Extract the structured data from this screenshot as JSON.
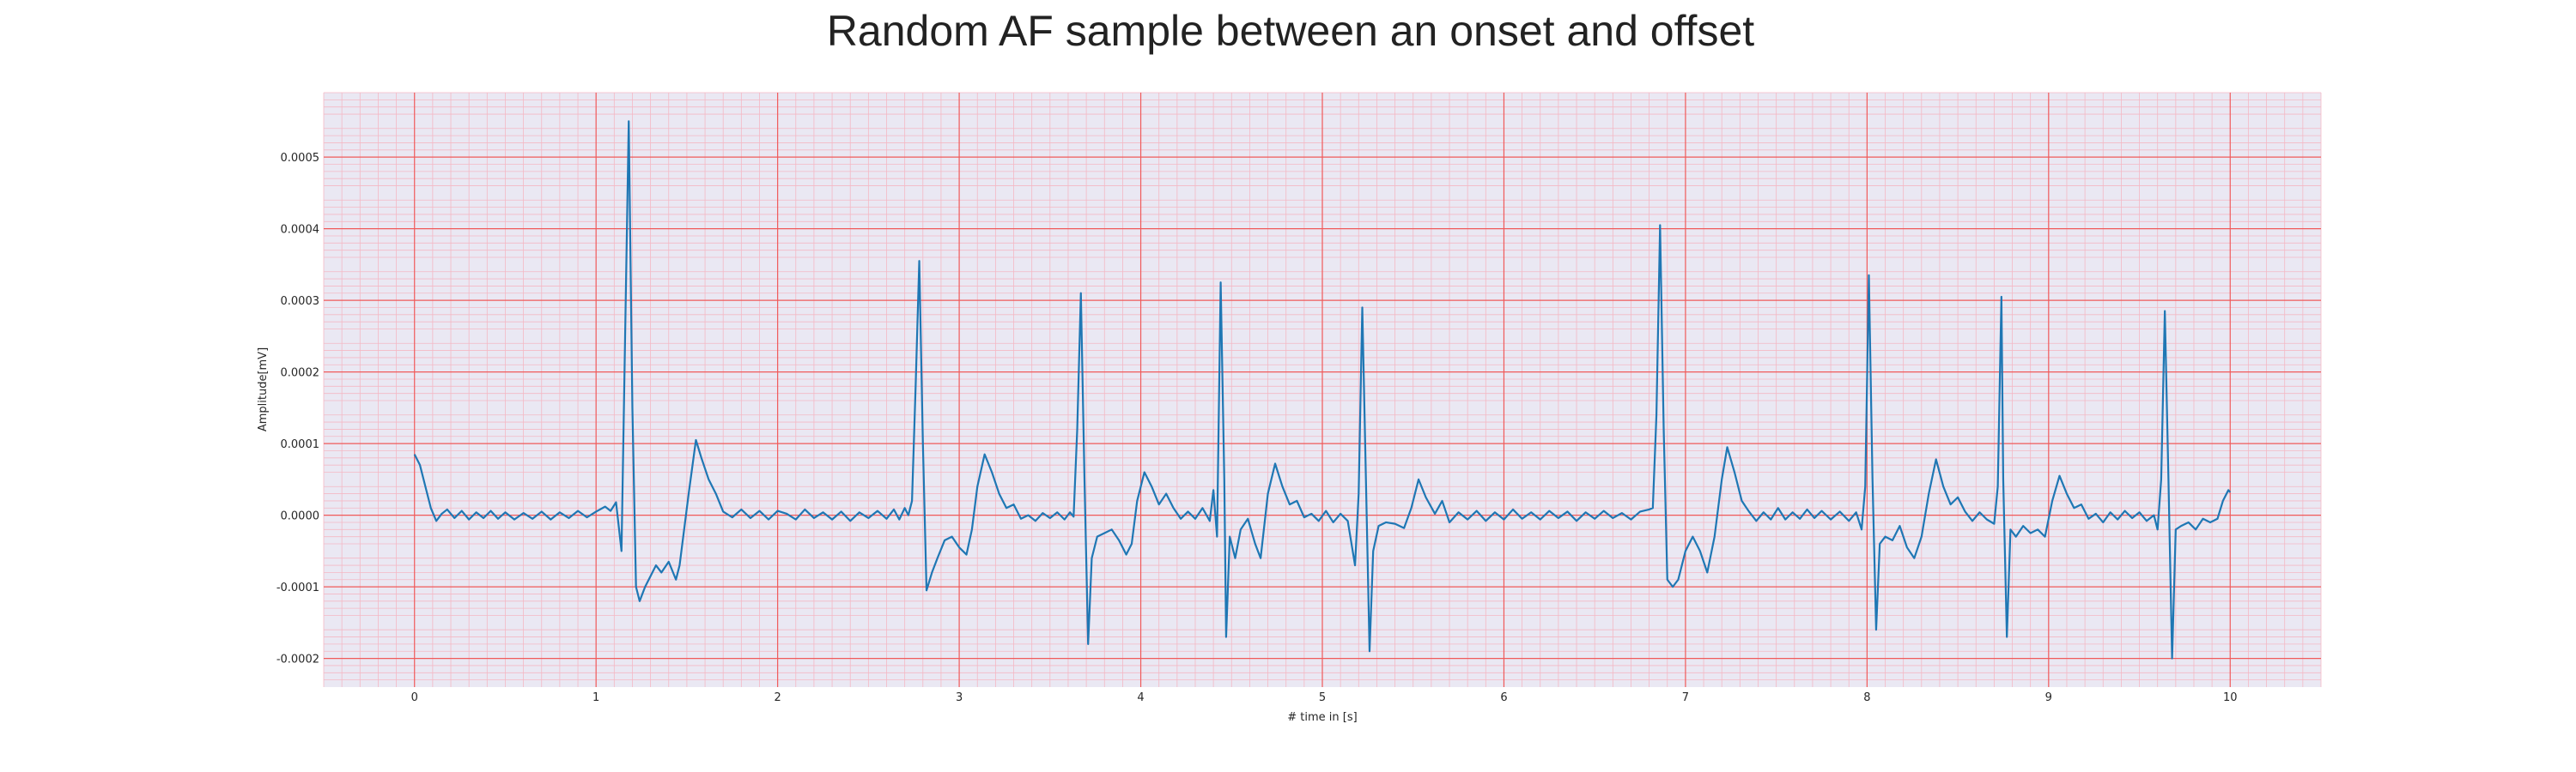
{
  "chart_data": {
    "type": "line",
    "title": "Random AF sample between an onset and offset",
    "xlabel": "# time in [s]",
    "ylabel": "Amplitude[mV]",
    "xlim": [
      -0.5,
      10.5
    ],
    "ylim": [
      -0.00024,
      0.00059
    ],
    "x_ticks": [
      0,
      1,
      2,
      3,
      4,
      5,
      6,
      7,
      8,
      9,
      10
    ],
    "y_ticks": [
      -0.0002,
      -0.0001,
      0.0,
      0.0001,
      0.0002,
      0.0003,
      0.0004,
      0.0005
    ],
    "y_tick_labels": [
      "-0.0002",
      "-0.0001",
      "0.0000",
      "0.0001",
      "0.0002",
      "0.0003",
      "0.0004",
      "0.0005"
    ],
    "grid": true,
    "colors": {
      "plot_background": "#eae8f3",
      "major_grid": "#f05a5a",
      "minor_grid": "#f4b8c4",
      "series": "#1f77b4"
    },
    "series": [
      {
        "name": "",
        "points": [
          [
            0.0,
            8.5e-05
          ],
          [
            0.03,
            7e-05
          ],
          [
            0.06,
            4e-05
          ],
          [
            0.09,
            1e-05
          ],
          [
            0.12,
            -8e-06
          ],
          [
            0.15,
            2e-06
          ],
          [
            0.18,
            8e-06
          ],
          [
            0.22,
            -4e-06
          ],
          [
            0.26,
            6e-06
          ],
          [
            0.3,
            -6e-06
          ],
          [
            0.34,
            4e-06
          ],
          [
            0.38,
            -4e-06
          ],
          [
            0.42,
            6e-06
          ],
          [
            0.46,
            -5e-06
          ],
          [
            0.5,
            4e-06
          ],
          [
            0.55,
            -6e-06
          ],
          [
            0.6,
            3e-06
          ],
          [
            0.65,
            -5e-06
          ],
          [
            0.7,
            5e-06
          ],
          [
            0.75,
            -6e-06
          ],
          [
            0.8,
            4e-06
          ],
          [
            0.85,
            -4e-06
          ],
          [
            0.9,
            6e-06
          ],
          [
            0.95,
            -3e-06
          ],
          [
            1.0,
            5e-06
          ],
          [
            1.05,
            1.2e-05
          ],
          [
            1.08,
            6e-06
          ],
          [
            1.11,
            1.8e-05
          ],
          [
            1.14,
            -5e-05
          ],
          [
            1.16,
            0.00025
          ],
          [
            1.18,
            0.00055
          ],
          [
            1.2,
            0.00015
          ],
          [
            1.22,
            -0.0001
          ],
          [
            1.24,
            -0.00012
          ],
          [
            1.27,
            -0.0001
          ],
          [
            1.3,
            -8.5e-05
          ],
          [
            1.33,
            -7e-05
          ],
          [
            1.36,
            -8e-05
          ],
          [
            1.4,
            -6.5e-05
          ],
          [
            1.44,
            -9e-05
          ],
          [
            1.46,
            -7e-05
          ],
          [
            1.48,
            -3e-05
          ],
          [
            1.51,
            3e-05
          ],
          [
            1.55,
            0.000105
          ],
          [
            1.58,
            8e-05
          ],
          [
            1.62,
            5e-05
          ],
          [
            1.66,
            3e-05
          ],
          [
            1.7,
            5e-06
          ],
          [
            1.75,
            -3e-06
          ],
          [
            1.8,
            8e-06
          ],
          [
            1.85,
            -4e-06
          ],
          [
            1.9,
            6e-06
          ],
          [
            1.95,
            -6e-06
          ],
          [
            2.0,
            6e-06
          ],
          [
            2.05,
            2e-06
          ],
          [
            2.1,
            -6e-06
          ],
          [
            2.15,
            8e-06
          ],
          [
            2.2,
            -4e-06
          ],
          [
            2.25,
            4e-06
          ],
          [
            2.3,
            -6e-06
          ],
          [
            2.35,
            5e-06
          ],
          [
            2.4,
            -8e-06
          ],
          [
            2.45,
            4e-06
          ],
          [
            2.5,
            -4e-06
          ],
          [
            2.55,
            6e-06
          ],
          [
            2.6,
            -5e-06
          ],
          [
            2.64,
            8e-06
          ],
          [
            2.67,
            -6e-06
          ],
          [
            2.7,
            1e-05
          ],
          [
            2.72,
            0.0
          ],
          [
            2.74,
            2e-05
          ],
          [
            2.76,
            0.00018
          ],
          [
            2.78,
            0.000355
          ],
          [
            2.8,
            0.0001
          ],
          [
            2.82,
            -0.000105
          ],
          [
            2.85,
            -8e-05
          ],
          [
            2.88,
            -6e-05
          ],
          [
            2.92,
            -3.5e-05
          ],
          [
            2.96,
            -3e-05
          ],
          [
            3.0,
            -4.5e-05
          ],
          [
            3.04,
            -5.5e-05
          ],
          [
            3.07,
            -2e-05
          ],
          [
            3.1,
            4e-05
          ],
          [
            3.14,
            8.5e-05
          ],
          [
            3.18,
            6e-05
          ],
          [
            3.22,
            3e-05
          ],
          [
            3.26,
            1e-05
          ],
          [
            3.3,
            1.5e-05
          ],
          [
            3.34,
            -5e-06
          ],
          [
            3.38,
            0.0
          ],
          [
            3.42,
            -8e-06
          ],
          [
            3.46,
            3e-06
          ],
          [
            3.5,
            -4e-06
          ],
          [
            3.54,
            4e-06
          ],
          [
            3.58,
            -6e-06
          ],
          [
            3.61,
            4e-06
          ],
          [
            3.63,
            -2e-06
          ],
          [
            3.65,
            0.00012
          ],
          [
            3.67,
            0.00031
          ],
          [
            3.69,
            5e-05
          ],
          [
            3.71,
            -0.00018
          ],
          [
            3.73,
            -6e-05
          ],
          [
            3.76,
            -3e-05
          ],
          [
            3.8,
            -2.5e-05
          ],
          [
            3.84,
            -2e-05
          ],
          [
            3.88,
            -3.5e-05
          ],
          [
            3.92,
            -5.5e-05
          ],
          [
            3.95,
            -4e-05
          ],
          [
            3.98,
            2e-05
          ],
          [
            4.02,
            6e-05
          ],
          [
            4.06,
            4e-05
          ],
          [
            4.1,
            1.5e-05
          ],
          [
            4.14,
            3e-05
          ],
          [
            4.18,
            1e-05
          ],
          [
            4.22,
            -5e-06
          ],
          [
            4.26,
            5e-06
          ],
          [
            4.3,
            -5e-06
          ],
          [
            4.34,
            1e-05
          ],
          [
            4.38,
            -8e-06
          ],
          [
            4.4,
            3.5e-05
          ],
          [
            4.42,
            -3e-05
          ],
          [
            4.44,
            0.000325
          ],
          [
            4.46,
            5e-05
          ],
          [
            4.47,
            -0.00017
          ],
          [
            4.49,
            -3e-05
          ],
          [
            4.52,
            -6e-05
          ],
          [
            4.55,
            -2e-05
          ],
          [
            4.59,
            -5e-06
          ],
          [
            4.63,
            -4e-05
          ],
          [
            4.66,
            -6e-05
          ],
          [
            4.7,
            3e-05
          ],
          [
            4.74,
            7.2e-05
          ],
          [
            4.78,
            4e-05
          ],
          [
            4.82,
            1.5e-05
          ],
          [
            4.86,
            2e-05
          ],
          [
            4.9,
            -3e-06
          ],
          [
            4.94,
            2e-06
          ],
          [
            4.98,
            -8e-06
          ],
          [
            5.02,
            6e-06
          ],
          [
            5.06,
            -1e-05
          ],
          [
            5.1,
            2e-06
          ],
          [
            5.14,
            -8e-06
          ],
          [
            5.18,
            -7e-05
          ],
          [
            5.2,
            3e-05
          ],
          [
            5.22,
            0.00029
          ],
          [
            5.24,
            5e-05
          ],
          [
            5.26,
            -0.00019
          ],
          [
            5.28,
            -5e-05
          ],
          [
            5.31,
            -1.5e-05
          ],
          [
            5.35,
            -1e-05
          ],
          [
            5.4,
            -1.2e-05
          ],
          [
            5.45,
            -1.8e-05
          ],
          [
            5.49,
            1e-05
          ],
          [
            5.53,
            5e-05
          ],
          [
            5.57,
            2.5e-05
          ],
          [
            5.62,
            2e-06
          ],
          [
            5.66,
            2e-05
          ],
          [
            5.7,
            -1e-05
          ],
          [
            5.75,
            4e-06
          ],
          [
            5.8,
            -6e-06
          ],
          [
            5.85,
            6e-06
          ],
          [
            5.9,
            -8e-06
          ],
          [
            5.95,
            4e-06
          ],
          [
            6.0,
            -6e-06
          ],
          [
            6.05,
            8e-06
          ],
          [
            6.1,
            -5e-06
          ],
          [
            6.15,
            4e-06
          ],
          [
            6.2,
            -6e-06
          ],
          [
            6.25,
            6e-06
          ],
          [
            6.3,
            -4e-06
          ],
          [
            6.35,
            5e-06
          ],
          [
            6.4,
            -8e-06
          ],
          [
            6.45,
            4e-06
          ],
          [
            6.5,
            -5e-06
          ],
          [
            6.55,
            6e-06
          ],
          [
            6.6,
            -4e-06
          ],
          [
            6.65,
            3e-06
          ],
          [
            6.7,
            -6e-06
          ],
          [
            6.75,
            5e-06
          ],
          [
            6.8,
            8e-06
          ],
          [
            6.82,
            1e-05
          ],
          [
            6.84,
            0.00014
          ],
          [
            6.86,
            0.000405
          ],
          [
            6.88,
            0.00012
          ],
          [
            6.9,
            -9e-05
          ],
          [
            6.93,
            -0.0001
          ],
          [
            6.96,
            -9e-05
          ],
          [
            7.0,
            -5e-05
          ],
          [
            7.04,
            -3e-05
          ],
          [
            7.08,
            -5e-05
          ],
          [
            7.12,
            -8e-05
          ],
          [
            7.16,
            -3e-05
          ],
          [
            7.2,
            5e-05
          ],
          [
            7.23,
            9.5e-05
          ],
          [
            7.27,
            6e-05
          ],
          [
            7.31,
            2e-05
          ],
          [
            7.35,
            5e-06
          ],
          [
            7.39,
            -8e-06
          ],
          [
            7.43,
            4e-06
          ],
          [
            7.47,
            -6e-06
          ],
          [
            7.51,
            1e-05
          ],
          [
            7.55,
            -6e-06
          ],
          [
            7.59,
            4e-06
          ],
          [
            7.63,
            -5e-06
          ],
          [
            7.67,
            8e-06
          ],
          [
            7.71,
            -4e-06
          ],
          [
            7.75,
            6e-06
          ],
          [
            7.8,
            -6e-06
          ],
          [
            7.85,
            5e-06
          ],
          [
            7.9,
            -8e-06
          ],
          [
            7.94,
            4e-06
          ],
          [
            7.97,
            -2e-05
          ],
          [
            7.99,
            4e-05
          ],
          [
            8.01,
            0.000335
          ],
          [
            8.03,
            5e-05
          ],
          [
            8.05,
            -0.00016
          ],
          [
            8.07,
            -4e-05
          ],
          [
            8.1,
            -3e-05
          ],
          [
            8.14,
            -3.5e-05
          ],
          [
            8.18,
            -1.5e-05
          ],
          [
            8.22,
            -4.5e-05
          ],
          [
            8.26,
            -6e-05
          ],
          [
            8.3,
            -3e-05
          ],
          [
            8.34,
            3e-05
          ],
          [
            8.38,
            7.8e-05
          ],
          [
            8.42,
            4e-05
          ],
          [
            8.46,
            1.5e-05
          ],
          [
            8.5,
            2.5e-05
          ],
          [
            8.54,
            5e-06
          ],
          [
            8.58,
            -8e-06
          ],
          [
            8.62,
            4e-06
          ],
          [
            8.66,
            -6e-06
          ],
          [
            8.7,
            -1.2e-05
          ],
          [
            8.72,
            4e-05
          ],
          [
            8.74,
            0.000305
          ],
          [
            8.75,
            5e-05
          ],
          [
            8.77,
            -0.00017
          ],
          [
            8.79,
            -2e-05
          ],
          [
            8.82,
            -3e-05
          ],
          [
            8.86,
            -1.5e-05
          ],
          [
            8.9,
            -2.5e-05
          ],
          [
            8.94,
            -2e-05
          ],
          [
            8.98,
            -3e-05
          ],
          [
            9.02,
            2e-05
          ],
          [
            9.06,
            5.5e-05
          ],
          [
            9.1,
            3e-05
          ],
          [
            9.14,
            1e-05
          ],
          [
            9.18,
            1.5e-05
          ],
          [
            9.22,
            -5e-06
          ],
          [
            9.26,
            2e-06
          ],
          [
            9.3,
            -1e-05
          ],
          [
            9.34,
            4e-06
          ],
          [
            9.38,
            -6e-06
          ],
          [
            9.42,
            6e-06
          ],
          [
            9.46,
            -4e-06
          ],
          [
            9.5,
            4e-06
          ],
          [
            9.54,
            -8e-06
          ],
          [
            9.58,
            0.0
          ],
          [
            9.6,
            -2e-05
          ],
          [
            9.62,
            5e-05
          ],
          [
            9.64,
            0.000285
          ],
          [
            9.66,
            5e-05
          ],
          [
            9.68,
            -0.0002
          ],
          [
            9.7,
            -2e-05
          ],
          [
            9.73,
            -1.5e-05
          ],
          [
            9.77,
            -1e-05
          ],
          [
            9.81,
            -2e-05
          ],
          [
            9.85,
            -5e-06
          ],
          [
            9.89,
            -1e-05
          ],
          [
            9.93,
            -5e-06
          ],
          [
            9.96,
            2e-05
          ],
          [
            9.99,
            3.5e-05
          ],
          [
            10.0,
            3.2e-05
          ]
        ]
      }
    ]
  }
}
